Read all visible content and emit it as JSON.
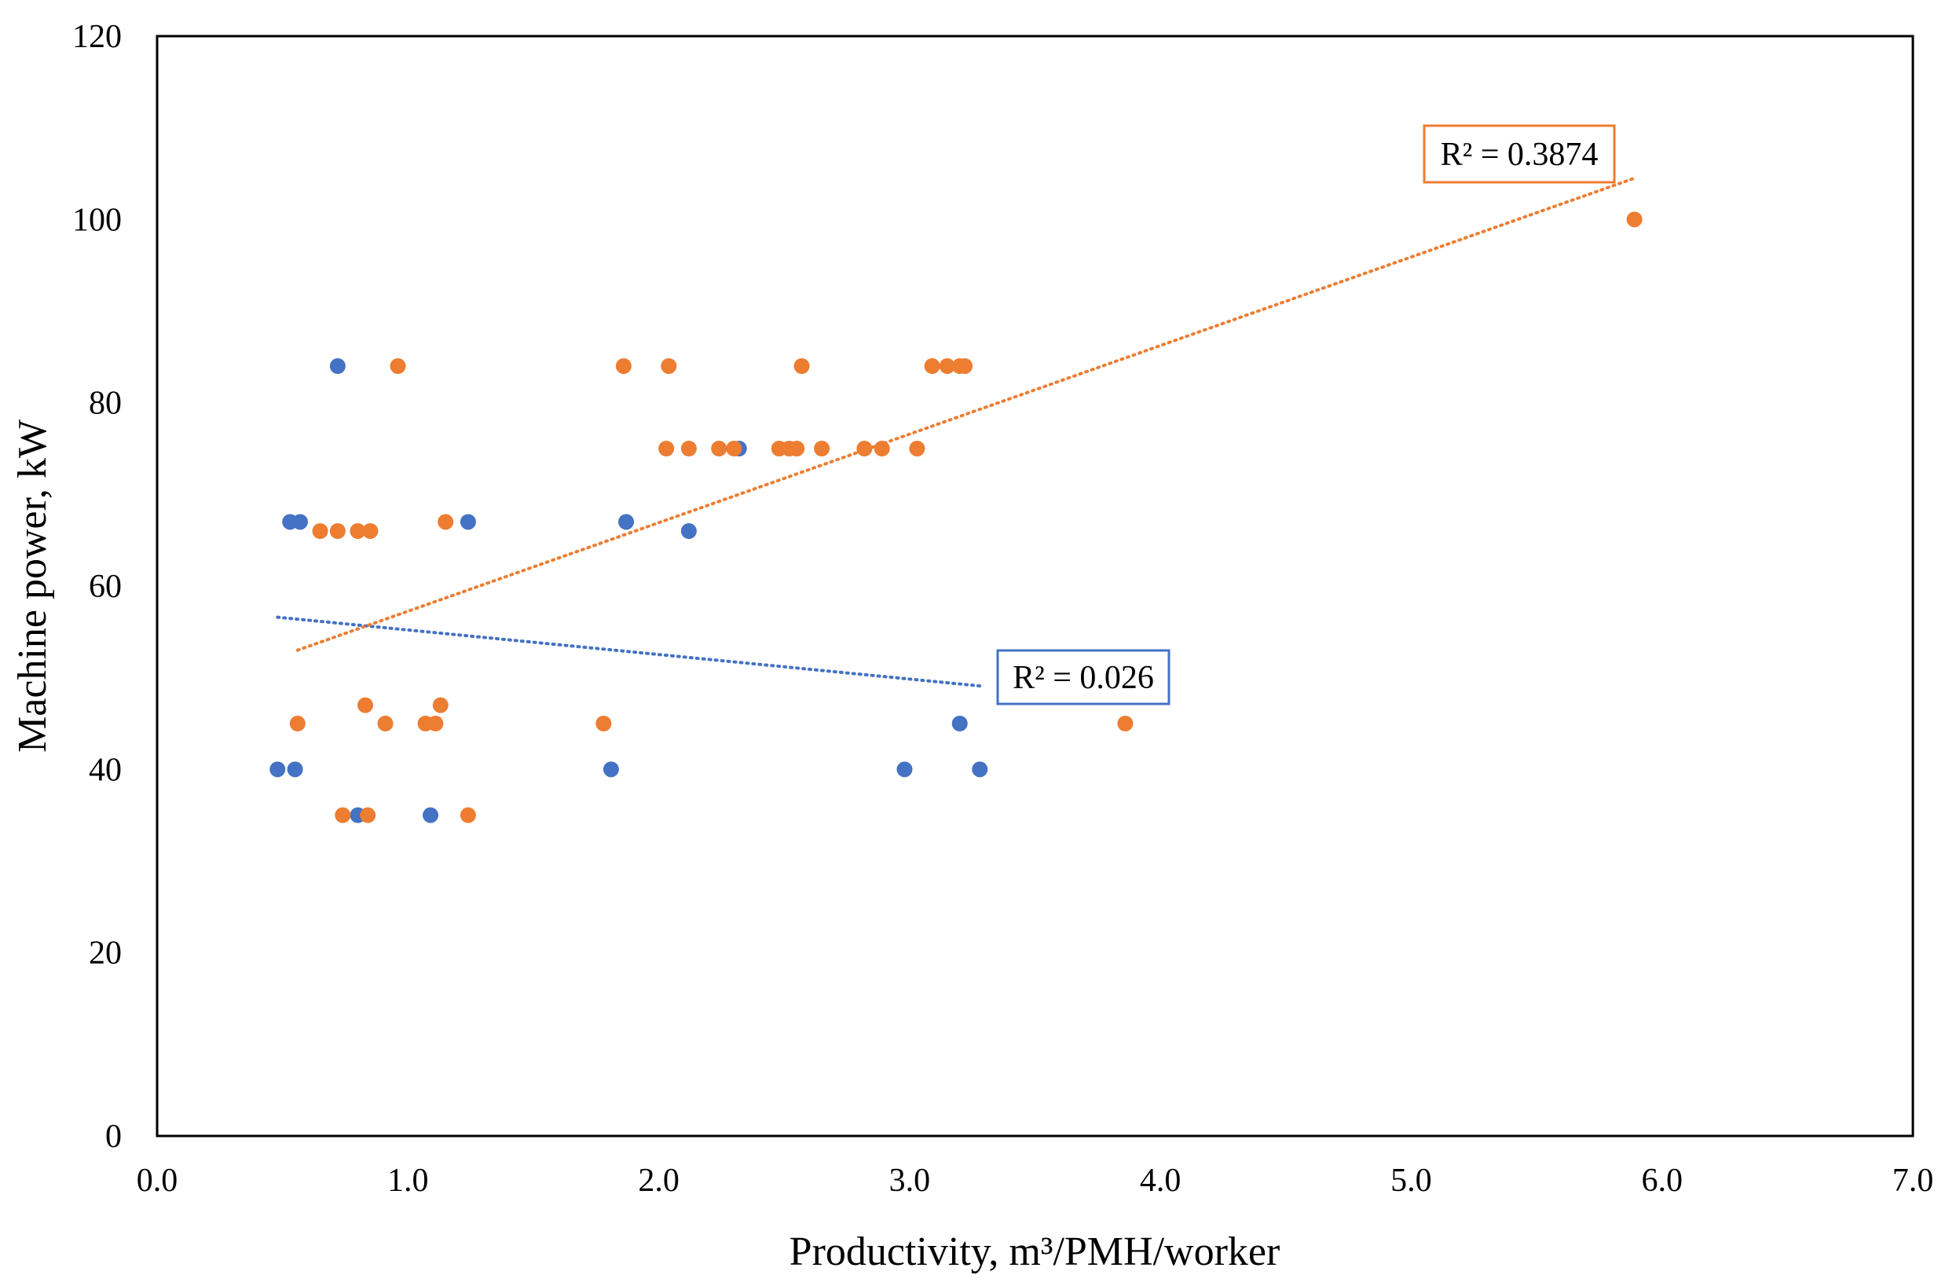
{
  "chart_data": {
    "type": "scatter",
    "title": "",
    "xlabel": "Productivity, m³/PMH/worker",
    "ylabel": "Machine power, kW",
    "xlim": [
      0.0,
      7.0
    ],
    "ylim": [
      0,
      120
    ],
    "x_ticks": [
      "0.0",
      "1.0",
      "2.0",
      "3.0",
      "4.0",
      "5.0",
      "6.0",
      "7.0"
    ],
    "y_ticks": [
      "0",
      "20",
      "40",
      "60",
      "80",
      "100",
      "120"
    ],
    "grid": false,
    "legend": "none",
    "series": [
      {
        "name": "blue",
        "color": "#4472C4",
        "points": [
          [
            0.48,
            40
          ],
          [
            0.55,
            40
          ],
          [
            0.53,
            67
          ],
          [
            0.57,
            67
          ],
          [
            0.72,
            84
          ],
          [
            0.8,
            35
          ],
          [
            1.09,
            35
          ],
          [
            1.24,
            67
          ],
          [
            1.81,
            40
          ],
          [
            1.87,
            67
          ],
          [
            2.12,
            66
          ],
          [
            2.32,
            75
          ],
          [
            2.98,
            40
          ],
          [
            3.2,
            45
          ],
          [
            3.28,
            40
          ]
        ],
        "trendline": {
          "x": [
            0.48,
            3.28
          ],
          "y": [
            56.6,
            49.1
          ],
          "r2_label": "R² = 0.026"
        }
      },
      {
        "name": "orange",
        "color": "#ED7D31",
        "points": [
          [
            0.56,
            45
          ],
          [
            0.65,
            66
          ],
          [
            0.72,
            66
          ],
          [
            0.74,
            35
          ],
          [
            0.8,
            66
          ],
          [
            0.83,
            47
          ],
          [
            0.84,
            35
          ],
          [
            0.85,
            66
          ],
          [
            0.91,
            45
          ],
          [
            0.96,
            84
          ],
          [
            1.07,
            45
          ],
          [
            1.11,
            45
          ],
          [
            1.13,
            47
          ],
          [
            1.15,
            67
          ],
          [
            1.24,
            35
          ],
          [
            1.78,
            45
          ],
          [
            1.86,
            84
          ],
          [
            2.03,
            75
          ],
          [
            2.04,
            84
          ],
          [
            2.12,
            75
          ],
          [
            2.24,
            75
          ],
          [
            2.3,
            75
          ],
          [
            2.48,
            75
          ],
          [
            2.52,
            75
          ],
          [
            2.55,
            75
          ],
          [
            2.57,
            84
          ],
          [
            2.65,
            75
          ],
          [
            2.82,
            75
          ],
          [
            2.89,
            75
          ],
          [
            3.03,
            75
          ],
          [
            3.09,
            84
          ],
          [
            3.15,
            84
          ],
          [
            3.2,
            84
          ],
          [
            3.22,
            84
          ],
          [
            3.86,
            45
          ],
          [
            5.89,
            100
          ]
        ],
        "trendline": {
          "x": [
            0.56,
            5.89
          ],
          "y": [
            53.0,
            104.5
          ],
          "r2_label": "R² = 0.3874"
        }
      }
    ]
  }
}
